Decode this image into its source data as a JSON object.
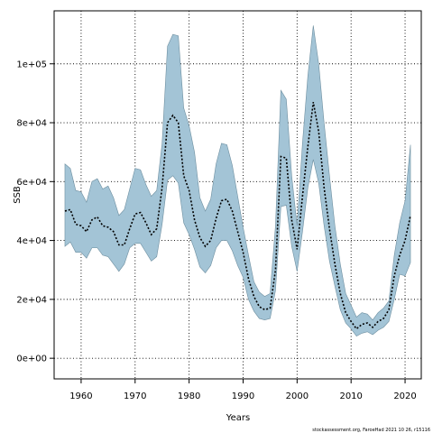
{
  "chart_data": {
    "type": "area",
    "xlabel": "Years",
    "ylabel": "SSB",
    "xlim": [
      1955,
      2023
    ],
    "ylim": [
      -7000,
      118000
    ],
    "xticks": [
      1960,
      1970,
      1980,
      1990,
      2000,
      2010,
      2020
    ],
    "xtick_labels": [
      "1960",
      "1970",
      "1980",
      "1990",
      "2000",
      "2010",
      "2020"
    ],
    "yticks": [
      0,
      20000,
      40000,
      60000,
      80000,
      100000
    ],
    "ytick_labels": [
      "0e+00",
      "2e+04",
      "4e+04",
      "6e+04",
      "8e+04",
      "1e+05"
    ],
    "grid": true,
    "footer_text": "stockassessment.org, FaroeHad 2021 10 26, r15116",
    "colors": {
      "band": "#a3c4d6",
      "band_edge": "#6e8fa0",
      "line": "#000000"
    },
    "x": [
      1957,
      1958,
      1959,
      1960,
      1961,
      1962,
      1963,
      1964,
      1965,
      1966,
      1967,
      1968,
      1969,
      1970,
      1971,
      1972,
      1973,
      1974,
      1975,
      1976,
      1977,
      1978,
      1979,
      1980,
      1981,
      1982,
      1983,
      1984,
      1985,
      1986,
      1987,
      1988,
      1989,
      1990,
      1991,
      1992,
      1993,
      1994,
      1995,
      1996,
      1997,
      1998,
      1999,
      2000,
      2001,
      2002,
      2003,
      2004,
      2005,
      2006,
      2007,
      2008,
      2009,
      2010,
      2011,
      2012,
      2013,
      2014,
      2015,
      2016,
      2017,
      2018,
      2019,
      2020,
      2021
    ],
    "series": [
      {
        "role": "estimate",
        "values": [
          50000,
          50500,
          45500,
          45000,
          43000,
          47000,
          48000,
          45000,
          44500,
          43000,
          38500,
          38500,
          44000,
          49000,
          49500,
          46000,
          42000,
          44000,
          58000,
          80000,
          82500,
          80000,
          62000,
          57000,
          47000,
          41000,
          38000,
          40000,
          47500,
          53500,
          54000,
          50000,
          43000,
          36000,
          27000,
          21000,
          17500,
          16500,
          17000,
          30000,
          68500,
          68000,
          47000,
          37000,
          55000,
          72000,
          87000,
          77000,
          58000,
          44000,
          32000,
          22000,
          15500,
          12500,
          10000,
          11500,
          12000,
          10500,
          12500,
          13500,
          16500,
          28000,
          35000,
          40000,
          48500
        ]
      },
      {
        "role": "upper",
        "values": [
          66000,
          64500,
          57000,
          56500,
          53000,
          60000,
          61000,
          57500,
          58500,
          54500,
          48500,
          50500,
          57500,
          64500,
          64000,
          59000,
          55000,
          57000,
          73000,
          106000,
          110000,
          109500,
          85000,
          79000,
          70000,
          54500,
          50000,
          54000,
          66000,
          73000,
          72500,
          65500,
          55000,
          44500,
          35000,
          26000,
          22500,
          21000,
          22000,
          45000,
          91000,
          88000,
          62000,
          45000,
          73000,
          96000,
          113000,
          100000,
          80000,
          62000,
          45000,
          32000,
          22000,
          18000,
          14000,
          15500,
          15000,
          13000,
          15500,
          17000,
          19500,
          35000,
          46000,
          53500,
          72500
        ]
      },
      {
        "role": "lower",
        "values": [
          38000,
          39500,
          36000,
          36000,
          34000,
          37500,
          37500,
          35000,
          34500,
          32000,
          29500,
          32000,
          37500,
          39000,
          39000,
          36000,
          33000,
          34500,
          45500,
          60500,
          62000,
          59500,
          46000,
          42000,
          37000,
          31000,
          29000,
          31500,
          37500,
          40000,
          40000,
          36500,
          31500,
          27500,
          20000,
          16000,
          13500,
          13000,
          13500,
          23000,
          51500,
          52000,
          38000,
          29500,
          43000,
          58000,
          67500,
          59500,
          45000,
          33000,
          24500,
          16500,
          12000,
          10000,
          7500,
          8500,
          9000,
          8000,
          9500,
          10500,
          12500,
          20000,
          28500,
          28000,
          32500
        ]
      }
    ]
  }
}
